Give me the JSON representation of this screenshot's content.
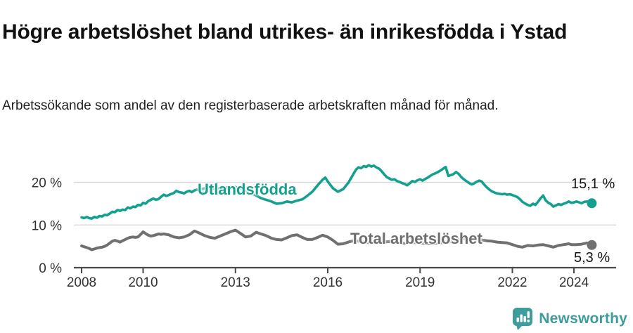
{
  "header": {
    "title": "Högre arbetslöshet bland utrikes- än inrikesfödda i Ystad",
    "subtitle": "Arbetssökande som andel av den registerbaserade arbetskraften månad för månad."
  },
  "chart_data": {
    "type": "line",
    "title": "Högre arbetslöshet bland utrikes- än inrikesfödda i Ystad",
    "subtitle": "Arbetssökande som andel av den registerbaserade arbetskraften månad för månad.",
    "unit": "%",
    "grid": true,
    "legend_position": "inline-labels",
    "x_axis": {
      "label": "",
      "range": [
        2007.75,
        2025.4
      ],
      "ticks": [
        2008,
        2010,
        2013,
        2016,
        2019,
        2022,
        2024
      ],
      "tick_labels": [
        "2008",
        "2010",
        "2013",
        "2016",
        "2019",
        "2022",
        "2024"
      ]
    },
    "y_axis": {
      "label": "",
      "range": [
        0,
        27
      ],
      "ticks": [
        0,
        10,
        20
      ],
      "tick_labels": [
        "0 %",
        "10 %",
        "20 %"
      ]
    },
    "style": {
      "grid_color": "#DBDBDB",
      "axis_color": "#4A4A4A",
      "tick_color": "#333333"
    },
    "series": [
      {
        "name": "Utlandsfödda",
        "color": "#13A08E",
        "width": 3.6,
        "end_label": "15,1 %",
        "end_value": 15.1,
        "points": [
          [
            2008.0,
            11.8
          ],
          [
            2008.08,
            11.6
          ],
          [
            2008.17,
            11.9
          ],
          [
            2008.25,
            11.6
          ],
          [
            2008.33,
            11.5
          ],
          [
            2008.42,
            11.9
          ],
          [
            2008.5,
            11.7
          ],
          [
            2008.58,
            12.1
          ],
          [
            2008.67,
            12.0
          ],
          [
            2008.75,
            12.4
          ],
          [
            2008.83,
            12.3
          ],
          [
            2008.92,
            12.7
          ],
          [
            2009.0,
            13.1
          ],
          [
            2009.08,
            13.0
          ],
          [
            2009.17,
            13.5
          ],
          [
            2009.25,
            13.3
          ],
          [
            2009.33,
            13.6
          ],
          [
            2009.42,
            13.5
          ],
          [
            2009.5,
            14.1
          ],
          [
            2009.58,
            13.9
          ],
          [
            2009.67,
            14.3
          ],
          [
            2009.75,
            14.2
          ],
          [
            2009.83,
            14.7
          ],
          [
            2009.92,
            14.6
          ],
          [
            2010.0,
            15.2
          ],
          [
            2010.08,
            15.0
          ],
          [
            2010.17,
            15.6
          ],
          [
            2010.25,
            15.9
          ],
          [
            2010.33,
            16.2
          ],
          [
            2010.42,
            15.9
          ],
          [
            2010.5,
            16.1
          ],
          [
            2010.58,
            16.6
          ],
          [
            2010.67,
            17.1
          ],
          [
            2010.75,
            16.8
          ],
          [
            2010.83,
            17.0
          ],
          [
            2010.92,
            17.3
          ],
          [
            2011.0,
            17.5
          ],
          [
            2011.08,
            18.0
          ],
          [
            2011.17,
            17.7
          ],
          [
            2011.25,
            17.6
          ],
          [
            2011.33,
            17.4
          ],
          [
            2011.42,
            17.8
          ],
          [
            2011.5,
            18.0
          ],
          [
            2011.58,
            17.7
          ],
          [
            2011.67,
            18.1
          ],
          [
            2011.75,
            18.3
          ],
          [
            2011.83,
            18.1
          ],
          [
            2011.92,
            18.4
          ],
          [
            2012.0,
            18.6
          ],
          [
            2012.17,
            19.1
          ],
          [
            2012.33,
            18.4
          ],
          [
            2012.5,
            18.6
          ],
          [
            2012.67,
            18.8
          ],
          [
            2012.83,
            18.7
          ],
          [
            2013.0,
            18.9
          ],
          [
            2013.17,
            18.5
          ],
          [
            2013.33,
            18.1
          ],
          [
            2013.5,
            17.5
          ],
          [
            2013.67,
            16.9
          ],
          [
            2013.83,
            16.3
          ],
          [
            2014.0,
            15.9
          ],
          [
            2014.17,
            15.5
          ],
          [
            2014.33,
            15.0
          ],
          [
            2014.5,
            15.1
          ],
          [
            2014.67,
            15.5
          ],
          [
            2014.83,
            15.3
          ],
          [
            2015.0,
            15.7
          ],
          [
            2015.17,
            16.0
          ],
          [
            2015.33,
            16.8
          ],
          [
            2015.5,
            17.8
          ],
          [
            2015.67,
            19.3
          ],
          [
            2015.83,
            20.6
          ],
          [
            2015.92,
            21.1
          ],
          [
            2016.0,
            20.2
          ],
          [
            2016.17,
            18.6
          ],
          [
            2016.33,
            17.8
          ],
          [
            2016.5,
            18.4
          ],
          [
            2016.67,
            19.9
          ],
          [
            2016.83,
            21.9
          ],
          [
            2016.92,
            23.0
          ],
          [
            2017.0,
            23.5
          ],
          [
            2017.08,
            23.3
          ],
          [
            2017.17,
            23.8
          ],
          [
            2017.25,
            23.6
          ],
          [
            2017.33,
            24.0
          ],
          [
            2017.42,
            23.7
          ],
          [
            2017.5,
            23.9
          ],
          [
            2017.58,
            23.5
          ],
          [
            2017.67,
            23.2
          ],
          [
            2017.75,
            22.6
          ],
          [
            2017.83,
            21.9
          ],
          [
            2017.92,
            21.2
          ],
          [
            2018.0,
            20.9
          ],
          [
            2018.08,
            20.6
          ],
          [
            2018.17,
            20.7
          ],
          [
            2018.25,
            20.3
          ],
          [
            2018.33,
            20.1
          ],
          [
            2018.42,
            19.8
          ],
          [
            2018.5,
            19.6
          ],
          [
            2018.58,
            19.3
          ],
          [
            2018.67,
            19.8
          ],
          [
            2018.75,
            20.3
          ],
          [
            2018.83,
            20.1
          ],
          [
            2018.92,
            20.5
          ],
          [
            2019.0,
            20.7
          ],
          [
            2019.08,
            20.4
          ],
          [
            2019.17,
            20.8
          ],
          [
            2019.25,
            21.1
          ],
          [
            2019.33,
            21.5
          ],
          [
            2019.42,
            21.9
          ],
          [
            2019.5,
            22.1
          ],
          [
            2019.58,
            22.4
          ],
          [
            2019.67,
            22.8
          ],
          [
            2019.75,
            23.2
          ],
          [
            2019.83,
            23.6
          ],
          [
            2019.92,
            21.5
          ],
          [
            2020.0,
            21.7
          ],
          [
            2020.08,
            21.9
          ],
          [
            2020.17,
            22.4
          ],
          [
            2020.25,
            22.0
          ],
          [
            2020.33,
            21.3
          ],
          [
            2020.42,
            20.7
          ],
          [
            2020.5,
            20.3
          ],
          [
            2020.58,
            19.9
          ],
          [
            2020.67,
            19.5
          ],
          [
            2020.75,
            19.7
          ],
          [
            2020.83,
            20.1
          ],
          [
            2020.92,
            20.4
          ],
          [
            2021.0,
            20.2
          ],
          [
            2021.08,
            19.5
          ],
          [
            2021.17,
            18.8
          ],
          [
            2021.25,
            18.3
          ],
          [
            2021.33,
            17.9
          ],
          [
            2021.42,
            17.6
          ],
          [
            2021.5,
            17.4
          ],
          [
            2021.58,
            17.3
          ],
          [
            2021.67,
            17.2
          ],
          [
            2021.75,
            17.3
          ],
          [
            2021.83,
            17.1
          ],
          [
            2021.92,
            17.2
          ],
          [
            2022.0,
            17.0
          ],
          [
            2022.08,
            16.8
          ],
          [
            2022.17,
            16.5
          ],
          [
            2022.25,
            16.0
          ],
          [
            2022.33,
            15.4
          ],
          [
            2022.42,
            15.0
          ],
          [
            2022.5,
            14.7
          ],
          [
            2022.58,
            14.5
          ],
          [
            2022.67,
            15.0
          ],
          [
            2022.75,
            14.7
          ],
          [
            2022.83,
            15.4
          ],
          [
            2022.92,
            16.3
          ],
          [
            2023.0,
            16.9
          ],
          [
            2023.08,
            15.8
          ],
          [
            2023.17,
            15.2
          ],
          [
            2023.25,
            14.9
          ],
          [
            2023.33,
            14.3
          ],
          [
            2023.42,
            14.6
          ],
          [
            2023.5,
            14.9
          ],
          [
            2023.58,
            14.7
          ],
          [
            2023.67,
            15.0
          ],
          [
            2023.75,
            15.2
          ],
          [
            2023.83,
            15.5
          ],
          [
            2023.92,
            15.2
          ],
          [
            2024.0,
            15.3
          ],
          [
            2024.08,
            15.5
          ],
          [
            2024.17,
            15.3
          ],
          [
            2024.25,
            15.1
          ],
          [
            2024.33,
            15.4
          ],
          [
            2024.42,
            15.5
          ],
          [
            2024.5,
            15.3
          ],
          [
            2024.58,
            15.1
          ]
        ]
      },
      {
        "name": "Total arbetslöshet",
        "color": "#707070",
        "width": 4,
        "end_label": "5,3 %",
        "end_value": 5.3,
        "points": [
          [
            2008.0,
            5.1
          ],
          [
            2008.08,
            4.9
          ],
          [
            2008.17,
            4.7
          ],
          [
            2008.25,
            4.5
          ],
          [
            2008.33,
            4.2
          ],
          [
            2008.42,
            4.4
          ],
          [
            2008.5,
            4.6
          ],
          [
            2008.58,
            4.7
          ],
          [
            2008.67,
            4.8
          ],
          [
            2008.75,
            5.0
          ],
          [
            2008.83,
            5.3
          ],
          [
            2008.92,
            5.8
          ],
          [
            2009.0,
            6.2
          ],
          [
            2009.08,
            6.4
          ],
          [
            2009.17,
            6.2
          ],
          [
            2009.25,
            6.0
          ],
          [
            2009.33,
            6.3
          ],
          [
            2009.42,
            6.6
          ],
          [
            2009.5,
            6.9
          ],
          [
            2009.58,
            7.1
          ],
          [
            2009.67,
            7.2
          ],
          [
            2009.75,
            7.1
          ],
          [
            2009.83,
            7.2
          ],
          [
            2009.92,
            7.8
          ],
          [
            2010.0,
            8.4
          ],
          [
            2010.08,
            8.0
          ],
          [
            2010.17,
            7.6
          ],
          [
            2010.25,
            7.4
          ],
          [
            2010.33,
            7.5
          ],
          [
            2010.42,
            7.7
          ],
          [
            2010.5,
            7.9
          ],
          [
            2010.58,
            7.8
          ],
          [
            2010.67,
            7.9
          ],
          [
            2010.75,
            7.8
          ],
          [
            2010.83,
            7.7
          ],
          [
            2010.92,
            7.4
          ],
          [
            2011.0,
            7.2
          ],
          [
            2011.17,
            7.0
          ],
          [
            2011.33,
            7.2
          ],
          [
            2011.5,
            7.7
          ],
          [
            2011.67,
            8.6
          ],
          [
            2011.83,
            8.1
          ],
          [
            2012.0,
            7.5
          ],
          [
            2012.17,
            7.1
          ],
          [
            2012.33,
            6.9
          ],
          [
            2012.5,
            7.4
          ],
          [
            2012.67,
            7.9
          ],
          [
            2012.83,
            8.4
          ],
          [
            2013.0,
            8.8
          ],
          [
            2013.17,
            8.0
          ],
          [
            2013.33,
            7.2
          ],
          [
            2013.5,
            7.4
          ],
          [
            2013.67,
            8.3
          ],
          [
            2013.83,
            7.9
          ],
          [
            2014.0,
            7.5
          ],
          [
            2014.17,
            6.9
          ],
          [
            2014.33,
            6.6
          ],
          [
            2014.5,
            6.5
          ],
          [
            2014.67,
            7.0
          ],
          [
            2014.83,
            7.5
          ],
          [
            2015.0,
            7.7
          ],
          [
            2015.17,
            7.1
          ],
          [
            2015.33,
            6.6
          ],
          [
            2015.5,
            6.6
          ],
          [
            2015.67,
            7.1
          ],
          [
            2015.83,
            7.6
          ],
          [
            2016.0,
            7.2
          ],
          [
            2016.17,
            6.4
          ],
          [
            2016.33,
            5.5
          ],
          [
            2016.5,
            5.6
          ],
          [
            2016.67,
            6.0
          ],
          [
            2016.83,
            6.3
          ],
          [
            2017.0,
            6.2
          ],
          [
            2017.25,
            5.9
          ],
          [
            2017.5,
            5.8
          ],
          [
            2017.75,
            6.0
          ],
          [
            2018.0,
            6.1
          ],
          [
            2018.25,
            5.8
          ],
          [
            2018.5,
            5.7
          ],
          [
            2018.75,
            5.9
          ],
          [
            2019.0,
            5.8
          ],
          [
            2019.25,
            5.6
          ],
          [
            2019.5,
            5.7
          ],
          [
            2019.75,
            5.9
          ],
          [
            2020.0,
            6.1
          ],
          [
            2020.25,
            6.7
          ],
          [
            2020.5,
            6.9
          ],
          [
            2020.75,
            6.7
          ],
          [
            2021.0,
            6.5
          ],
          [
            2021.17,
            6.3
          ],
          [
            2021.33,
            6.2
          ],
          [
            2021.5,
            6.0
          ],
          [
            2021.67,
            5.9
          ],
          [
            2021.83,
            5.8
          ],
          [
            2022.0,
            5.4
          ],
          [
            2022.17,
            5.0
          ],
          [
            2022.33,
            4.8
          ],
          [
            2022.5,
            5.2
          ],
          [
            2022.67,
            5.1
          ],
          [
            2022.83,
            5.3
          ],
          [
            2023.0,
            5.4
          ],
          [
            2023.17,
            5.1
          ],
          [
            2023.33,
            4.8
          ],
          [
            2023.5,
            5.2
          ],
          [
            2023.67,
            5.4
          ],
          [
            2023.83,
            5.6
          ],
          [
            2023.92,
            5.4
          ],
          [
            2024.08,
            5.4
          ],
          [
            2024.25,
            5.5
          ],
          [
            2024.42,
            5.8
          ],
          [
            2024.58,
            5.3
          ]
        ]
      }
    ]
  },
  "branding": {
    "logo_text": "Newsworthy",
    "logo_color": "#3E9C9C",
    "logo_icon": "bar-chart-speech-bubble-icon"
  }
}
